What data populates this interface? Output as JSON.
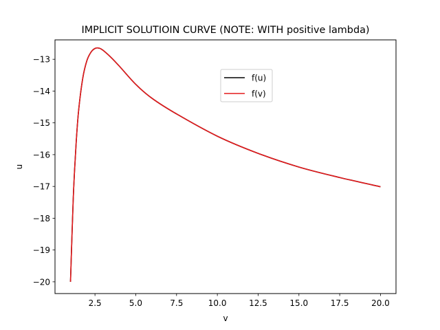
{
  "chart_data": {
    "type": "line",
    "title": "IMPLICIT SOLUTIOIN CURVE (NOTE: WITH positive lambda)",
    "xlabel": "v",
    "ylabel": "u",
    "xlim": [
      0.05,
      20.95
    ],
    "ylim": [
      -20.37,
      -12.39
    ],
    "xticks": [
      {
        "value": 2.5,
        "label": "2.5"
      },
      {
        "value": 5.0,
        "label": "5.0"
      },
      {
        "value": 7.5,
        "label": "7.5"
      },
      {
        "value": 10.0,
        "label": "10.0"
      },
      {
        "value": 12.5,
        "label": "12.5"
      },
      {
        "value": 15.0,
        "label": "15.0"
      },
      {
        "value": 17.5,
        "label": "17.5"
      },
      {
        "value": 20.0,
        "label": "20.0"
      }
    ],
    "yticks": [
      {
        "value": -13,
        "label": "−13"
      },
      {
        "value": -14,
        "label": "−14"
      },
      {
        "value": -15,
        "label": "−15"
      },
      {
        "value": -16,
        "label": "−16"
      },
      {
        "value": -17,
        "label": "−17"
      },
      {
        "value": -18,
        "label": "−18"
      },
      {
        "value": -19,
        "label": "−19"
      },
      {
        "value": -20,
        "label": "−20"
      }
    ],
    "grid": false,
    "legend_position": "upper-center",
    "series": [
      {
        "name": "f(u)",
        "color": "#000000",
        "x": [
          1.0,
          1.1,
          1.2,
          1.35,
          1.5,
          1.75,
          2.0,
          2.25,
          2.5,
          2.75,
          3.0,
          3.5,
          4.0,
          5.0,
          6.0,
          7.5,
          10.0,
          12.5,
          15.0,
          17.5,
          20.0
        ],
        "y": [
          -20.0,
          -18.4,
          -17.0,
          -15.6,
          -14.6,
          -13.6,
          -13.05,
          -12.78,
          -12.66,
          -12.65,
          -12.72,
          -12.95,
          -13.22,
          -13.79,
          -14.23,
          -14.72,
          -15.42,
          -15.96,
          -16.39,
          -16.72,
          -17.01
        ]
      },
      {
        "name": "f(v)",
        "color": "#e41a1c",
        "x": [
          1.0,
          1.1,
          1.2,
          1.35,
          1.5,
          1.75,
          2.0,
          2.25,
          2.5,
          2.75,
          3.0,
          3.5,
          4.0,
          5.0,
          6.0,
          7.5,
          10.0,
          12.5,
          15.0,
          17.5,
          20.0
        ],
        "y": [
          -20.0,
          -18.4,
          -17.0,
          -15.6,
          -14.6,
          -13.6,
          -13.05,
          -12.78,
          -12.66,
          -12.65,
          -12.72,
          -12.95,
          -13.22,
          -13.79,
          -14.23,
          -14.72,
          -15.42,
          -15.96,
          -16.39,
          -16.72,
          -17.01
        ]
      }
    ]
  }
}
